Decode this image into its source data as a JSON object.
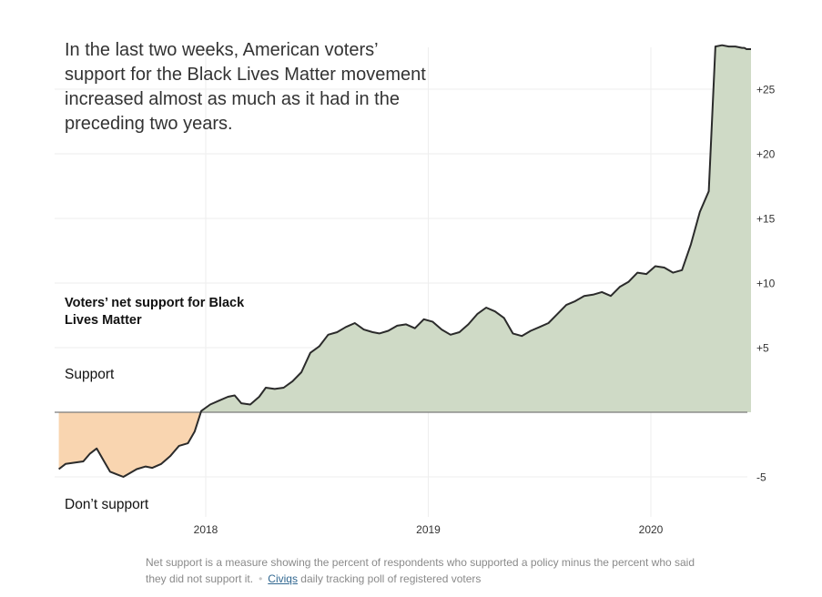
{
  "headline": "In the last two weeks, American voters’ support for the Black Lives Matter movement increased almost as much as it had in the preceding two years.",
  "colors": {
    "positive_fill": "#cfdac6",
    "negative_fill": "#f9d5b0",
    "line": "#2b2b2b",
    "grid": "#eeeeee",
    "zero_line": "#7a7a7a"
  },
  "chart_data": {
    "type": "area",
    "title": "Voters’ net support for Black Lives Matter",
    "xlabel": "",
    "ylabel": "",
    "ylim": [
      -7,
      29
    ],
    "xlim": [
      2017.34,
      2020.45
    ],
    "grid": true,
    "y_ticks": [
      {
        "value": 25,
        "label": "+25"
      },
      {
        "value": 20,
        "label": "+20"
      },
      {
        "value": 15,
        "label": "+15"
      },
      {
        "value": 10,
        "label": "+10"
      },
      {
        "value": 5,
        "label": "+5"
      },
      {
        "value": -5,
        "label": "-5"
      }
    ],
    "x_ticks": [
      {
        "value": 2018,
        "label": "2018"
      },
      {
        "value": 2019,
        "label": "2019"
      },
      {
        "value": 2020,
        "label": "2020"
      }
    ],
    "annotations": {
      "positive": "Support",
      "negative": "Don’t support"
    },
    "series": [
      {
        "x": [
          2017.34,
          2017.37,
          2017.41,
          2017.45,
          2017.48,
          2017.51,
          2017.54,
          2017.57,
          2017.6,
          2017.63,
          2017.66,
          2017.69,
          2017.73,
          2017.76,
          2017.8,
          2017.84,
          2017.88,
          2017.92,
          2017.95,
          2017.98,
          2018.02,
          2018.06,
          2018.1,
          2018.13,
          2018.16,
          2018.2,
          2018.24,
          2018.27,
          2018.31,
          2018.35,
          2018.39,
          2018.43,
          2018.47,
          2018.51,
          2018.55,
          2018.59,
          2018.63,
          2018.67,
          2018.71,
          2018.75,
          2018.78,
          2018.82,
          2018.86,
          2018.9,
          2018.94,
          2018.98,
          2019.02,
          2019.06,
          2019.1,
          2019.14,
          2019.18,
          2019.22,
          2019.26,
          2019.3,
          2019.34,
          2019.38,
          2019.42,
          2019.46,
          2019.5,
          2019.54,
          2019.58,
          2019.62,
          2019.66,
          2019.7,
          2019.74,
          2019.78,
          2019.82,
          2019.86,
          2019.9,
          2019.94,
          2019.98,
          2020.02,
          2020.06,
          2020.1,
          2020.14,
          2020.18,
          2020.22,
          2020.26,
          2020.29,
          2020.32,
          2020.35,
          2020.38,
          2020.41,
          2020.42,
          2020.43,
          2020.45
        ],
        "y": [
          -4.4,
          -4.0,
          -3.9,
          -3.8,
          -3.2,
          -2.8,
          -3.7,
          -4.6,
          -4.8,
          -5.0,
          -4.7,
          -4.4,
          -4.2,
          -4.3,
          -4.0,
          -3.4,
          -2.6,
          -2.4,
          -1.5,
          0.1,
          0.6,
          0.9,
          1.2,
          1.3,
          0.7,
          0.6,
          1.2,
          1.9,
          1.8,
          1.9,
          2.4,
          3.1,
          4.6,
          5.1,
          6.0,
          6.2,
          6.6,
          6.9,
          6.4,
          6.2,
          6.1,
          6.3,
          6.7,
          6.8,
          6.5,
          7.2,
          7.0,
          6.4,
          6.0,
          6.2,
          6.8,
          7.6,
          8.1,
          7.8,
          7.3,
          6.1,
          5.9,
          6.3,
          6.6,
          6.9,
          7.6,
          8.3,
          8.6,
          9.0,
          9.1,
          9.3,
          9.0,
          9.7,
          10.1,
          10.8,
          10.7,
          11.3,
          11.2,
          10.8,
          11.0,
          13.0,
          15.5,
          17.1,
          28.3,
          28.4,
          28.3,
          28.3,
          28.2,
          28.2,
          28.1,
          28.1
        ]
      }
    ]
  },
  "footnote": {
    "text": "Net support is a measure showing the percent of respondents who supported a policy minus the percent who said they did not support it.",
    "source_link": "Civiqs",
    "source_text": "daily tracking poll of registered voters"
  }
}
